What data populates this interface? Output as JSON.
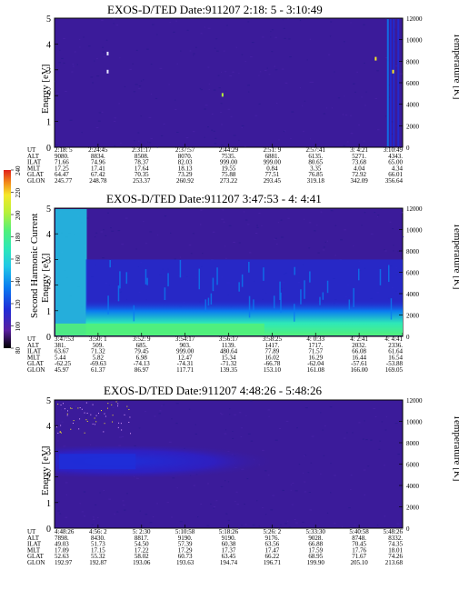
{
  "colors": {
    "background": "#5a1fa0",
    "panel_bg": "#3b1b9a",
    "spectrum_sequence": [
      "#000000",
      "#5a1fa0",
      "#1f2dd8",
      "#0a7bf0",
      "#22c8e6",
      "#2ee8b8",
      "#52f07a",
      "#b6f03a",
      "#f5e82a",
      "#f28a1a",
      "#e0201a"
    ]
  },
  "colorbar": {
    "label": "Second Harmonic Current",
    "ticks": [
      "80",
      "100",
      "120",
      "140",
      "160",
      "180",
      "200",
      "220",
      "240"
    ]
  },
  "chart_data": [
    {
      "type": "heatmap",
      "title": "EXOS-D/TED   Date:911207  2:18: 5 - 3:10:49",
      "ylabel": "Energy [eV]",
      "y2label": "Temperature [K]",
      "ylim": [
        0,
        5
      ],
      "y2lim": [
        0,
        12000
      ],
      "y_ticks": [
        "0",
        "1",
        "2",
        "3",
        "4",
        "5"
      ],
      "y2_ticks": [
        "0",
        "2000",
        "4000",
        "6000",
        "8000",
        "10000",
        "12000"
      ],
      "orbit_labels": [
        "UT",
        "ALT",
        "ILAT",
        "MLT",
        "GLAT",
        "GLON"
      ],
      "orbit_columns": [
        [
          "2:18: 5",
          "9080.",
          "71.66",
          "17.25",
          "64.47",
          "245.77"
        ],
        [
          "2:24:45",
          "8834.",
          "74.96",
          "17.41",
          "67.42",
          "248.78"
        ],
        [
          "2:31:17",
          "8508.",
          "78.37",
          "17.64",
          "70.35",
          "253.37"
        ],
        [
          "2:37:57",
          "8070.",
          "82.03",
          "18.13",
          "73.29",
          "260.92"
        ],
        [
          "2:44:29",
          "7535.",
          "999.00",
          "19.55",
          "75.88",
          "273.22"
        ],
        [
          "2:51: 9",
          "6881.",
          "999.00",
          "0.84",
          "77.51",
          "293.45"
        ],
        [
          "2:57:41",
          "6135.",
          "80.65",
          "3.35",
          "76.85",
          "319.18"
        ],
        [
          "3: 4:21",
          "5271.",
          "73.68",
          "4.04",
          "72.92",
          "342.09"
        ],
        [
          "3:10:49",
          "4343.",
          "65.00",
          "4.34",
          "66.01",
          "356.64"
        ]
      ],
      "features": "uniform low-count background; isolated bright pixels near 3-4 eV; vertical bright stripes near end of interval"
    },
    {
      "type": "heatmap",
      "title": "EXOS-D/TED   Date:911207  3:47:53 - 4: 4:41",
      "ylabel": "Energy [eV]",
      "y2label": "Temperature [K]",
      "ylim": [
        0,
        5
      ],
      "y2lim": [
        0,
        12000
      ],
      "y_ticks": [
        "0",
        "1",
        "2",
        "3",
        "4",
        "5"
      ],
      "y2_ticks": [
        "0",
        "2000",
        "4000",
        "6000",
        "8000",
        "10000",
        "12000"
      ],
      "orbit_labels": [
        "UT",
        "ALT",
        "ILAT",
        "MLT",
        "GLAT",
        "GLON"
      ],
      "orbit_columns": [
        [
          "3:47:53",
          "381.",
          "63.67",
          "5.44",
          "-62.25",
          "45.97"
        ],
        [
          "3:50: 1",
          "509.",
          "71.32",
          "5.82",
          "-69.63",
          "61.37"
        ],
        [
          "3:52: 9",
          "685.",
          "79.45",
          "6.98",
          "-74.13",
          "86.97"
        ],
        [
          "3:54:17",
          "903.",
          "999.00",
          "12.47",
          "-74.31",
          "117.71"
        ],
        [
          "3:56:17",
          "1139.",
          "480.64",
          "15.34",
          "-71.32",
          "139.35"
        ],
        [
          "3:58:25",
          "1417.",
          "77.89",
          "16.02",
          "-66.78",
          "153.10"
        ],
        [
          "4: 0:33",
          "1717.",
          "71.57",
          "16.29",
          "-62.04",
          "161.08"
        ],
        [
          "4: 2:41",
          "2032.",
          "66.08",
          "16.44",
          "-57.61",
          "166.00"
        ],
        [
          "4: 4:41",
          "2336.",
          "61.64",
          "16.54",
          "-53.88",
          "169.05"
        ]
      ],
      "features": "intense low-energy band 0-1 eV widening at start (0-5 eV near 3:47:53-3:48:30); mid-level emission 1-3 eV decreasing with time"
    },
    {
      "type": "heatmap",
      "title": "EXOS-D/TED   Date:911207  4:48:26 - 5:48:26",
      "ylabel": "Energy [eV]",
      "y2label": "Temperature [K]",
      "ylim": [
        0,
        5
      ],
      "y2lim": [
        0,
        12000
      ],
      "y_ticks": [
        "0",
        "1",
        "2",
        "3",
        "4",
        "5"
      ],
      "y2_ticks": [
        "0",
        "2000",
        "4000",
        "6000",
        "8000",
        "10000",
        "12000"
      ],
      "orbit_labels": [
        "UT",
        "ALT",
        "ILAT",
        "MLT",
        "GLAT",
        "GLON"
      ],
      "orbit_columns": [
        [
          "4:48:26",
          "7898.",
          "49.03",
          "17.09",
          "52.63",
          "192.97"
        ],
        [
          "4:56: 2",
          "8430.",
          "51.73",
          "17.15",
          "55.32",
          "192.87"
        ],
        [
          "5: 2:30",
          "8817.",
          "54.50",
          "17.22",
          "58.02",
          "193.06"
        ],
        [
          "5:10:58",
          "9190.",
          "57.39",
          "17.29",
          "60.73",
          "193.63"
        ],
        [
          "5:18:26",
          "9190.",
          "60.38",
          "17.37",
          "63.45",
          "194.74"
        ],
        [
          "5:26: 2",
          "9176.",
          "63.56",
          "17.47",
          "66.22",
          "196.71"
        ],
        [
          "5:33:30",
          "9028.",
          "66.88",
          "17.59",
          "68.95",
          "199.90"
        ],
        [
          "5:40:58",
          "8748.",
          "70.45",
          "17.76",
          "71.67",
          "205.10"
        ],
        [
          "5:48:26",
          "8332.",
          "74.35",
          "18.01",
          "74.26",
          "213.68"
        ]
      ],
      "features": "enhanced band near 2-3 eV fading with time; scattered bright points 4-5 eV at start"
    }
  ]
}
